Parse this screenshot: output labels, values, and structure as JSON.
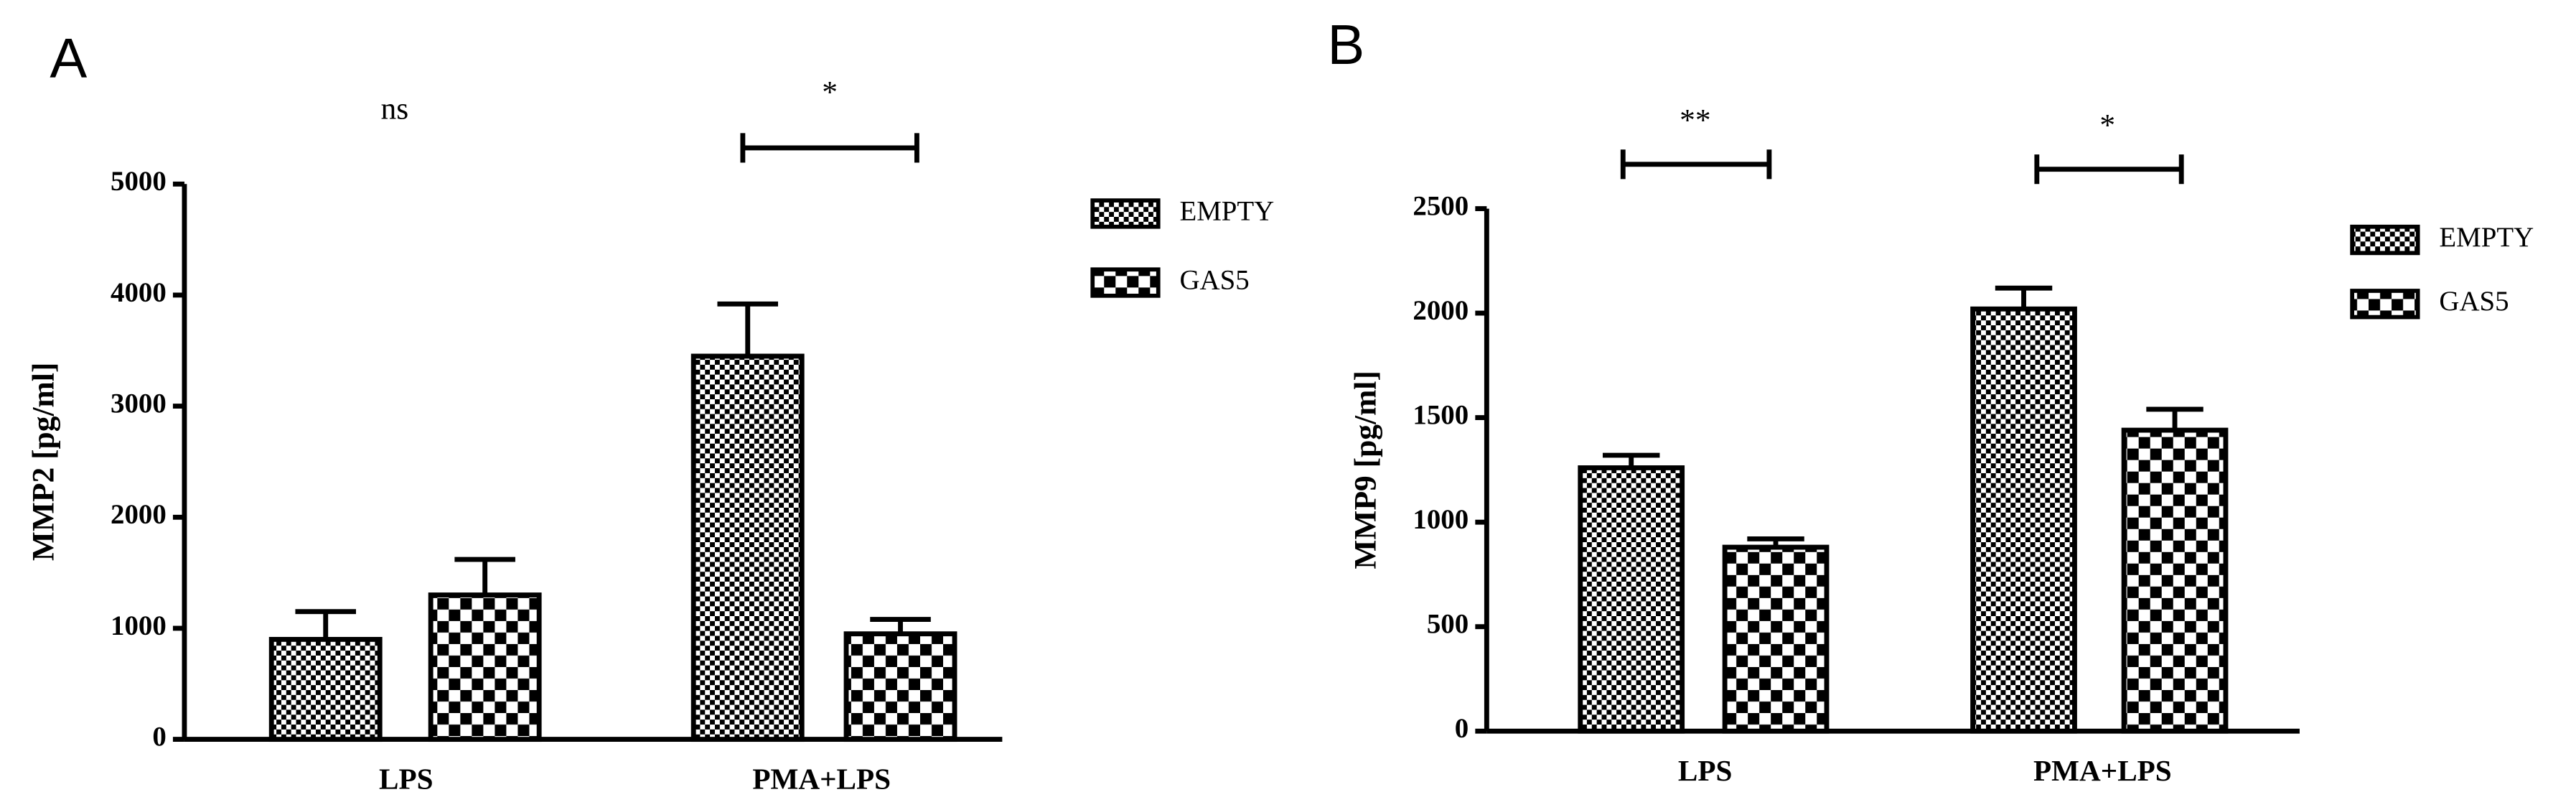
{
  "chart_data": [
    {
      "type": "bar",
      "panel_label": "A",
      "y_label": "MMP2 [pg/ml]",
      "categories": [
        "LPS",
        "PMA+LPS"
      ],
      "series": [
        {
          "name": "EMPTY",
          "color": "#000000",
          "values": [
            900,
            3450
          ],
          "errors": [
            250,
            470
          ]
        },
        {
          "name": "GAS5",
          "color": "#000000",
          "values": [
            1300,
            950
          ],
          "errors": [
            320,
            130
          ]
        }
      ],
      "annotations": [
        "ns",
        "*"
      ],
      "ylim": [
        0,
        5000
      ],
      "yticks": [
        0,
        1000,
        2000,
        3000,
        4000,
        5000
      ]
    },
    {
      "type": "bar",
      "panel_label": "B",
      "y_label": "MMP9 [pg/ml]",
      "categories": [
        "LPS",
        "PMA+LPS"
      ],
      "series": [
        {
          "name": "EMPTY",
          "color": "#000000",
          "values": [
            1260,
            2020
          ],
          "errors": [
            60,
            100
          ]
        },
        {
          "name": "GAS5",
          "color": "#000000",
          "values": [
            880,
            1440
          ],
          "errors": [
            40,
            100
          ]
        }
      ],
      "annotations": [
        "**",
        "*"
      ],
      "ylim": [
        0,
        2500
      ],
      "yticks": [
        0,
        500,
        1000,
        1500,
        2000,
        2500
      ]
    }
  ]
}
